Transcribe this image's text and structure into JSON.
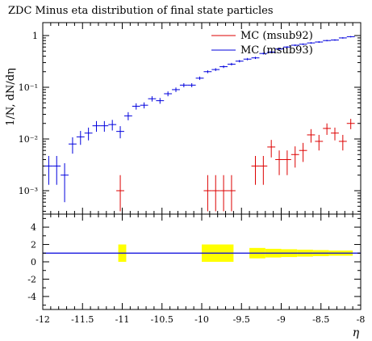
{
  "chart_data": [
    {
      "type": "scatter",
      "title": "ZDC Minus eta distribution of final state particles",
      "ylabel": "1/N, dN/dη",
      "xlabel": "",
      "xlim": [
        -12,
        -8
      ],
      "ylim": [
        0.0005,
        2
      ],
      "yscale": "log",
      "legend_placement": "top-right",
      "y_tick_labels": [
        "1",
        "10⁻¹",
        "10⁻²",
        "10⁻³"
      ],
      "series": [
        {
          "name": "MC (msub92)",
          "color": "#dd0000",
          "x": [
            -11.025,
            -9.925,
            -9.825,
            -9.725,
            -9.625,
            -9.325,
            -9.225,
            -9.125,
            -9.025,
            -8.925,
            -8.825,
            -8.725,
            -8.625,
            -8.525,
            -8.425,
            -8.325,
            -8.225,
            -8.125
          ],
          "y": [
            0.001,
            0.001,
            0.001,
            0.001,
            0.001,
            0.003,
            0.003,
            0.007,
            0.004,
            0.004,
            0.005,
            0.006,
            0.012,
            0.009,
            0.016,
            0.013,
            0.009,
            0.02
          ],
          "yerr": [
            0.001,
            0.001,
            0.001,
            0.001,
            0.001,
            0.0017,
            0.0017,
            0.0026,
            0.002,
            0.002,
            0.0022,
            0.0024,
            0.0035,
            0.003,
            0.004,
            0.0036,
            0.003,
            0.0045
          ]
        },
        {
          "name": "MC (msub93)",
          "color": "#0000dd",
          "x": [
            -11.925,
            -11.825,
            -11.725,
            -11.625,
            -11.525,
            -11.425,
            -11.325,
            -11.225,
            -11.125,
            -11.025,
            -10.925,
            -10.825,
            -10.725,
            -10.625,
            -10.525,
            -10.425,
            -10.325,
            -10.225,
            -10.125,
            -10.025,
            -9.925,
            -9.825,
            -9.725,
            -9.625,
            -9.525,
            -9.425,
            -9.325,
            -9.225,
            -9.125,
            -9.025,
            -8.925,
            -8.825,
            -8.725,
            -8.625,
            -8.525,
            -8.425,
            -8.325,
            -8.225,
            -8.125
          ],
          "y": [
            0.003,
            0.003,
            0.002,
            0.008,
            0.011,
            0.013,
            0.018,
            0.018,
            0.019,
            0.014,
            0.028,
            0.043,
            0.045,
            0.06,
            0.055,
            0.075,
            0.09,
            0.11,
            0.11,
            0.15,
            0.2,
            0.22,
            0.25,
            0.28,
            0.32,
            0.35,
            0.37,
            0.45,
            0.48,
            0.55,
            0.6,
            0.65,
            0.68,
            0.72,
            0.75,
            0.8,
            0.82,
            0.9,
            0.95
          ],
          "yerr": [
            0.0017,
            0.0017,
            0.0014,
            0.0028,
            0.0033,
            0.0036,
            0.0042,
            0.0042,
            0.0044,
            0.0037,
            0.005,
            0.006,
            0.006,
            0.007,
            0.007,
            0.008,
            0.009,
            0.01,
            0.01,
            0.011,
            0.013,
            0.014,
            0.015,
            0.016,
            0.017,
            0.018,
            0.018,
            0.02,
            0.021,
            0.022,
            0.023,
            0.024,
            0.025,
            0.026,
            0.027,
            0.027,
            0.028,
            0.029,
            0.03
          ]
        }
      ]
    },
    {
      "type": "bar",
      "xlabel": "η",
      "xlim": [
        -12,
        -8
      ],
      "ylim": [
        -5.5,
        5.5
      ],
      "y_tick_labels": [
        "4",
        "2",
        "0",
        "-2",
        "-4"
      ],
      "x_tick_labels": [
        "-12",
        "-11.5",
        "-11",
        "-10.5",
        "-10",
        "-9.5",
        "-9",
        "-8.5",
        "-8"
      ],
      "reference_line": 1,
      "band_color": "#ffff00",
      "line_color": "#0000dd",
      "bands": [
        {
          "x0": -11.05,
          "x1": -10.95,
          "lo": 0,
          "hi": 2
        },
        {
          "x0": -10.0,
          "x1": -9.6,
          "lo": 0,
          "hi": 2
        },
        {
          "x0": -9.4,
          "x1": -9.2,
          "lo": 0.4,
          "hi": 1.6
        },
        {
          "x0": -9.2,
          "x1": -9.0,
          "lo": 0.5,
          "hi": 1.5
        },
        {
          "x0": -9.0,
          "x1": -8.8,
          "lo": 0.55,
          "hi": 1.45
        },
        {
          "x0": -8.8,
          "x1": -8.6,
          "lo": 0.6,
          "hi": 1.4
        },
        {
          "x0": -8.6,
          "x1": -8.4,
          "lo": 0.65,
          "hi": 1.35
        },
        {
          "x0": -8.4,
          "x1": -8.1,
          "lo": 0.7,
          "hi": 1.3
        }
      ]
    }
  ]
}
